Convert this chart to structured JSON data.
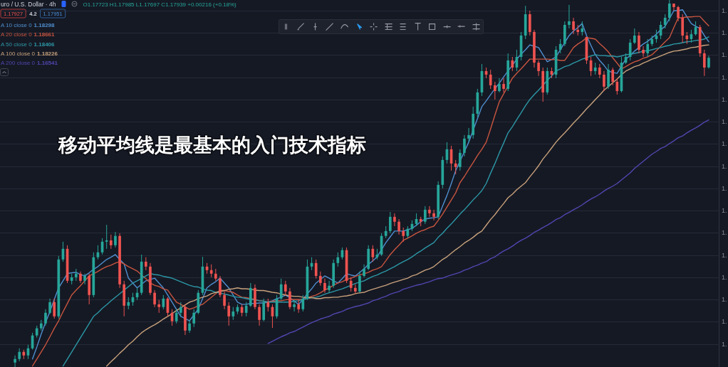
{
  "chart_data": {
    "type": "candlestick",
    "title": "移动平均线是最基本的入门技术指标",
    "legend": "top left",
    "grid": "y",
    "tick_labels": "y",
    "ylim": [
      1.1098,
      1.1924
    ],
    "yticks": [
      {
        "value": 1.19,
        "label": "1."
      },
      {
        "value": 1.185,
        "label": "1."
      },
      {
        "value": 1.18,
        "label": "1."
      },
      {
        "value": 1.175,
        "label": "1."
      },
      {
        "value": 1.17,
        "label": "1."
      },
      {
        "value": 1.165,
        "label": "1."
      },
      {
        "value": 1.16,
        "label": "1."
      },
      {
        "value": 1.155,
        "label": "1."
      },
      {
        "value": 1.15,
        "label": "1."
      },
      {
        "value": 1.145,
        "label": "1."
      },
      {
        "value": 1.14,
        "label": "1."
      },
      {
        "value": 1.135,
        "label": "1."
      },
      {
        "value": 1.13,
        "label": "1."
      },
      {
        "value": 1.125,
        "label": "1."
      },
      {
        "value": 1.12,
        "label": "1."
      },
      {
        "value": 1.115,
        "label": "1."
      }
    ],
    "categories": [
      null,
      null,
      null,
      null,
      null,
      null,
      null,
      null,
      null,
      null,
      null,
      null,
      null,
      null,
      null,
      null,
      null,
      null,
      null,
      null,
      null,
      null,
      null,
      null,
      null,
      null,
      null,
      null,
      null,
      null,
      null,
      null,
      null,
      null,
      null,
      null,
      null,
      null,
      null,
      null,
      null,
      null,
      null,
      null,
      null,
      null,
      null,
      null,
      null,
      null,
      null,
      null,
      null,
      null,
      null,
      null,
      null,
      null,
      null,
      null,
      null,
      null,
      null,
      null,
      null,
      null,
      null,
      null,
      null,
      null,
      null,
      null,
      null,
      null,
      null,
      null,
      null,
      null,
      null,
      null,
      null,
      null,
      null,
      null,
      null,
      null,
      null,
      null,
      null,
      null,
      null,
      null,
      null,
      null,
      null,
      null,
      null,
      null,
      null,
      null,
      null,
      null,
      null,
      null,
      null,
      null,
      null,
      null,
      null,
      null,
      null,
      null,
      null,
      null,
      null,
      null,
      null,
      null,
      null,
      null,
      null,
      null,
      null,
      null,
      null,
      null,
      null,
      null,
      null,
      null,
      null,
      null,
      null,
      null,
      null,
      null,
      null,
      null,
      null,
      null,
      null,
      null,
      null,
      null,
      null,
      null,
      null,
      null,
      null,
      null,
      null,
      null,
      null,
      null,
      null,
      null,
      null,
      null,
      null,
      null
    ],
    "ohlc": [
      [
        1.1108,
        1.1124,
        1.1098,
        1.1116
      ],
      [
        1.1116,
        1.114,
        1.1111,
        1.1132
      ],
      [
        1.1132,
        1.1137,
        1.1116,
        1.1124
      ],
      [
        1.1124,
        1.1148,
        1.1116,
        1.114
      ],
      [
        1.114,
        1.1175,
        1.1137,
        1.1169
      ],
      [
        1.1169,
        1.1191,
        1.1164,
        1.1185
      ],
      [
        1.1185,
        1.1204,
        1.118,
        1.1196
      ],
      [
        1.1196,
        1.1228,
        1.1191,
        1.122
      ],
      [
        1.122,
        1.1252,
        1.1217,
        1.1244
      ],
      [
        1.1244,
        1.1252,
        1.1207,
        1.1212
      ],
      [
        1.1212,
        1.1348,
        1.1207,
        1.134
      ],
      [
        1.134,
        1.138,
        1.1335,
        1.1364
      ],
      [
        1.1364,
        1.1372,
        1.1287,
        1.1292
      ],
      [
        1.1292,
        1.1308,
        1.1284,
        1.13
      ],
      [
        1.13,
        1.1319,
        1.1292,
        1.1308
      ],
      [
        1.1308,
        1.1313,
        1.1287,
        1.1292
      ],
      [
        1.1292,
        1.1308,
        1.1284,
        1.1303
      ],
      [
        1.1303,
        1.1308,
        1.1239,
        1.126
      ],
      [
        1.126,
        1.1356,
        1.1255,
        1.1345
      ],
      [
        1.1345,
        1.1372,
        1.134,
        1.1356
      ],
      [
        1.1356,
        1.1388,
        1.1351,
        1.138
      ],
      [
        1.138,
        1.1418,
        1.1364,
        1.1383
      ],
      [
        1.1383,
        1.1396,
        1.1364,
        1.1372
      ],
      [
        1.1372,
        1.1402,
        1.1367,
        1.1393
      ],
      [
        1.1393,
        1.1399,
        1.1276,
        1.1284
      ],
      [
        1.1284,
        1.1292,
        1.1212,
        1.1236
      ],
      [
        1.1236,
        1.1255,
        1.1228,
        1.1244
      ],
      [
        1.1244,
        1.1265,
        1.1236,
        1.1255
      ],
      [
        1.1255,
        1.1276,
        1.1249,
        1.1265
      ],
      [
        1.1265,
        1.1351,
        1.126,
        1.1335
      ],
      [
        1.1335,
        1.1345,
        1.1316,
        1.1324
      ],
      [
        1.1324,
        1.1332,
        1.126,
        1.1265
      ],
      [
        1.1265,
        1.1271,
        1.1233,
        1.1239
      ],
      [
        1.1239,
        1.1249,
        1.122,
        1.1233
      ],
      [
        1.1233,
        1.126,
        1.1228,
        1.1252
      ],
      [
        1.1252,
        1.1255,
        1.1212,
        1.122
      ],
      [
        1.122,
        1.1228,
        1.1191,
        1.1201
      ],
      [
        1.1201,
        1.1228,
        1.1196,
        1.122
      ],
      [
        1.122,
        1.1244,
        1.1212,
        1.1233
      ],
      [
        1.1233,
        1.1239,
        1.117,
        1.118
      ],
      [
        1.118,
        1.1204,
        1.1175,
        1.1196
      ],
      [
        1.1196,
        1.1228,
        1.1188,
        1.122
      ],
      [
        1.122,
        1.1271,
        1.1217,
        1.1265
      ],
      [
        1.1265,
        1.1346,
        1.126,
        1.1324
      ],
      [
        1.1324,
        1.1332,
        1.1308,
        1.1316
      ],
      [
        1.1316,
        1.1329,
        1.13,
        1.1308
      ],
      [
        1.1308,
        1.1319,
        1.1292,
        1.1297
      ],
      [
        1.1297,
        1.1303,
        1.1255,
        1.126
      ],
      [
        1.126,
        1.1268,
        1.1228,
        1.1236
      ],
      [
        1.1236,
        1.1244,
        1.1191,
        1.1212
      ],
      [
        1.1212,
        1.1233,
        1.1204,
        1.1223
      ],
      [
        1.1223,
        1.1239,
        1.1217,
        1.1233
      ],
      [
        1.1233,
        1.1239,
        1.1212,
        1.122
      ],
      [
        1.122,
        1.1244,
        1.1212,
        1.1236
      ],
      [
        1.1236,
        1.1287,
        1.1233,
        1.1276
      ],
      [
        1.1276,
        1.1284,
        1.1228,
        1.1233
      ],
      [
        1.1233,
        1.1239,
        1.1191,
        1.1204
      ],
      [
        1.1204,
        1.1252,
        1.1201,
        1.1244
      ],
      [
        1.1244,
        1.1252,
        1.1223,
        1.1233
      ],
      [
        1.1233,
        1.1239,
        1.1186,
        1.1212
      ],
      [
        1.1212,
        1.126,
        1.1207,
        1.1252
      ],
      [
        1.1252,
        1.1297,
        1.1249,
        1.1284
      ],
      [
        1.1284,
        1.1292,
        1.126,
        1.1268
      ],
      [
        1.1268,
        1.1276,
        1.1228,
        1.1233
      ],
      [
        1.1233,
        1.1249,
        1.1223,
        1.1239
      ],
      [
        1.1239,
        1.1249,
        1.122,
        1.1228
      ],
      [
        1.1228,
        1.126,
        1.1223,
        1.1252
      ],
      [
        1.1252,
        1.134,
        1.1249,
        1.1324
      ],
      [
        1.1324,
        1.1345,
        1.1316,
        1.1332
      ],
      [
        1.1332,
        1.134,
        1.1297,
        1.1303
      ],
      [
        1.1303,
        1.1313,
        1.1281,
        1.1287
      ],
      [
        1.1287,
        1.1297,
        1.1265,
        1.1271
      ],
      [
        1.1271,
        1.1292,
        1.1265,
        1.1281
      ],
      [
        1.1281,
        1.134,
        1.1276,
        1.1332
      ],
      [
        1.1332,
        1.1356,
        1.1324,
        1.1345
      ],
      [
        1.1345,
        1.1367,
        1.134,
        1.1361
      ],
      [
        1.1361,
        1.1367,
        1.1287,
        1.1292
      ],
      [
        1.1292,
        1.13,
        1.1268,
        1.1276
      ],
      [
        1.1276,
        1.1284,
        1.1263,
        1.1268
      ],
      [
        1.1268,
        1.1313,
        1.1265,
        1.1303
      ],
      [
        1.1303,
        1.1329,
        1.13,
        1.1319
      ],
      [
        1.1319,
        1.1372,
        1.1316,
        1.1364
      ],
      [
        1.1364,
        1.1372,
        1.1335,
        1.1345
      ],
      [
        1.1345,
        1.1364,
        1.134,
        1.1351
      ],
      [
        1.1351,
        1.1399,
        1.1348,
        1.1393
      ],
      [
        1.1393,
        1.1415,
        1.1388,
        1.1404
      ],
      [
        1.1404,
        1.1447,
        1.1399,
        1.1436
      ],
      [
        1.1436,
        1.1444,
        1.1415,
        1.1425
      ],
      [
        1.1425,
        1.1431,
        1.1396,
        1.1404
      ],
      [
        1.1404,
        1.1412,
        1.138,
        1.1393
      ],
      [
        1.1393,
        1.1415,
        1.1388,
        1.1409
      ],
      [
        1.1409,
        1.1428,
        1.1404,
        1.142
      ],
      [
        1.142,
        1.1444,
        1.1415,
        1.1431
      ],
      [
        1.1431,
        1.1436,
        1.1415,
        1.1425
      ],
      [
        1.1425,
        1.146,
        1.142,
        1.1452
      ],
      [
        1.1452,
        1.146,
        1.1436,
        1.1444
      ],
      [
        1.1444,
        1.1452,
        1.1428,
        1.1436
      ],
      [
        1.1436,
        1.1516,
        1.1431,
        1.1508
      ],
      [
        1.1508,
        1.1572,
        1.15,
        1.1564
      ],
      [
        1.1564,
        1.1604,
        1.1556,
        1.1588
      ],
      [
        1.1588,
        1.1596,
        1.154,
        1.1556
      ],
      [
        1.1556,
        1.1564,
        1.1532,
        1.1548
      ],
      [
        1.1548,
        1.1588,
        1.154,
        1.158
      ],
      [
        1.158,
        1.162,
        1.1572,
        1.1612
      ],
      [
        1.1612,
        1.1636,
        1.1604,
        1.162
      ],
      [
        1.162,
        1.1684,
        1.1612,
        1.1668
      ],
      [
        1.1668,
        1.1724,
        1.166,
        1.1716
      ],
      [
        1.1716,
        1.178,
        1.1708,
        1.1764
      ],
      [
        1.1764,
        1.1772,
        1.1748,
        1.1756
      ],
      [
        1.1756,
        1.1767,
        1.1724,
        1.1732
      ],
      [
        1.1732,
        1.174,
        1.17,
        1.1719
      ],
      [
        1.1719,
        1.1748,
        1.1716,
        1.1735
      ],
      [
        1.1735,
        1.1748,
        1.1716,
        1.1724
      ],
      [
        1.1724,
        1.1804,
        1.1719,
        1.1788
      ],
      [
        1.1788,
        1.1796,
        1.1764,
        1.1772
      ],
      [
        1.1772,
        1.1812,
        1.1764,
        1.1796
      ],
      [
        1.1796,
        1.1852,
        1.1788,
        1.1844
      ],
      [
        1.1844,
        1.1911,
        1.1836,
        1.1892
      ],
      [
        1.1892,
        1.19,
        1.1844,
        1.1852
      ],
      [
        1.1852,
        1.1857,
        1.1772,
        1.1783
      ],
      [
        1.1783,
        1.1788,
        1.1753,
        1.1764
      ],
      [
        1.1764,
        1.1772,
        1.1695,
        1.1716
      ],
      [
        1.1716,
        1.1772,
        1.1711,
        1.1764
      ],
      [
        1.1764,
        1.1772,
        1.1748,
        1.1756
      ],
      [
        1.1756,
        1.182,
        1.1748,
        1.1812
      ],
      [
        1.1812,
        1.1836,
        1.1804,
        1.1825
      ],
      [
        1.1825,
        1.1876,
        1.182,
        1.1868
      ],
      [
        1.1868,
        1.1913,
        1.186,
        1.1876
      ],
      [
        1.1876,
        1.1884,
        1.1847,
        1.1857
      ],
      [
        1.1857,
        1.1868,
        1.1844,
        1.1852
      ],
      [
        1.1852,
        1.1876,
        1.1844,
        1.186
      ],
      [
        1.1841,
        1.1841,
        1.178,
        1.1788
      ],
      [
        1.1788,
        1.1796,
        1.1753,
        1.1764
      ],
      [
        1.1764,
        1.1783,
        1.1756,
        1.1772
      ],
      [
        1.1772,
        1.178,
        1.1748,
        1.1756
      ],
      [
        1.1756,
        1.1764,
        1.1719,
        1.1729
      ],
      [
        1.1729,
        1.178,
        1.1724,
        1.1767
      ],
      [
        1.1767,
        1.1772,
        1.1732,
        1.174
      ],
      [
        1.174,
        1.1748,
        1.1711,
        1.1719
      ],
      [
        1.1719,
        1.1796,
        1.1716,
        1.1783
      ],
      [
        1.1783,
        1.1804,
        1.178,
        1.1796
      ],
      [
        1.1796,
        1.1836,
        1.1788,
        1.1828
      ],
      [
        1.1828,
        1.186,
        1.1825,
        1.1844
      ],
      [
        1.1844,
        1.1852,
        1.1804,
        1.1812
      ],
      [
        1.1812,
        1.182,
        1.1796,
        1.1804
      ],
      [
        1.1804,
        1.1836,
        1.1796,
        1.1825
      ],
      [
        1.1825,
        1.1844,
        1.182,
        1.1836
      ],
      [
        1.1836,
        1.1857,
        1.1828,
        1.1844
      ],
      [
        1.1844,
        1.1876,
        1.1836,
        1.1868
      ],
      [
        1.1868,
        1.1892,
        1.186,
        1.1884
      ],
      [
        1.1884,
        1.1924,
        1.1876,
        1.1916
      ],
      [
        1.1916,
        1.1916,
        1.19,
        1.1908
      ],
      [
        1.1908,
        1.1911,
        1.1876,
        1.1884
      ],
      [
        1.1884,
        1.1892,
        1.1828,
        1.1844
      ],
      [
        1.1844,
        1.1852,
        1.1825,
        1.1836
      ],
      [
        1.1836,
        1.1857,
        1.1828,
        1.1847
      ],
      [
        1.1847,
        1.1876,
        1.1844,
        1.1863
      ],
      [
        1.1863,
        1.1868,
        1.1796,
        1.1804
      ],
      [
        1.1804,
        1.1812,
        1.1753,
        1.1772
      ],
      [
        1.17723,
        1.17985,
        1.17697,
        1.17939
      ]
    ],
    "colors": [
      "#26a69a",
      "#26a69a",
      "#ef5350",
      "#26a69a",
      "#26a69a",
      "#26a69a",
      "#26a69a",
      "#26a69a",
      "#26a69a",
      "#ef5350",
      "#26a69a",
      "#26a69a",
      "#ef5350",
      "#26a69a",
      "#26a69a",
      "#ef5350",
      "#26a69a",
      "#ef5350",
      "#26a69a",
      "#26a69a",
      "#26a69a",
      "#26a69a",
      "#ef5350",
      "#26a69a",
      "#ef5350",
      "#ef5350",
      "#26a69a",
      "#26a69a",
      "#26a69a",
      "#26a69a",
      "#ef5350",
      "#ef5350",
      "#ef5350",
      "#ef5350",
      "#26a69a",
      "#ef5350",
      "#ef5350",
      "#26a69a",
      "#26a69a",
      "#ef5350",
      "#26a69a",
      "#26a69a",
      "#26a69a",
      "#26a69a",
      "#ef5350",
      "#ef5350",
      "#ef5350",
      "#ef5350",
      "#ef5350",
      "#ef5350",
      "#26a69a",
      "#26a69a",
      "#ef5350",
      "#26a69a",
      "#26a69a",
      "#ef5350",
      "#ef5350",
      "#26a69a",
      "#ef5350",
      "#ef5350",
      "#26a69a",
      "#26a69a",
      "#ef5350",
      "#ef5350",
      "#26a69a",
      "#ef5350",
      "#26a69a",
      "#26a69a",
      "#26a69a",
      "#ef5350",
      "#ef5350",
      "#ef5350",
      "#26a69a",
      "#26a69a",
      "#26a69a",
      "#26a69a",
      "#ef5350",
      "#ef5350",
      "#ef5350",
      "#26a69a",
      "#26a69a",
      "#26a69a",
      "#ef5350",
      "#26a69a",
      "#26a69a",
      "#26a69a",
      "#26a69a",
      "#ef5350",
      "#ef5350",
      "#ef5350",
      "#26a69a",
      "#26a69a",
      "#26a69a",
      "#ef5350",
      "#26a69a",
      "#ef5350",
      "#ef5350",
      "#26a69a",
      "#26a69a",
      "#26a69a",
      "#ef5350",
      "#ef5350",
      "#26a69a",
      "#26a69a",
      "#26a69a",
      "#26a69a",
      "#26a69a",
      "#26a69a",
      "#ef5350",
      "#ef5350",
      "#ef5350",
      "#26a69a",
      "#ef5350",
      "#26a69a",
      "#ef5350",
      "#26a69a",
      "#26a69a",
      "#26a69a",
      "#ef5350",
      "#ef5350",
      "#ef5350",
      "#ef5350",
      "#26a69a",
      "#ef5350",
      "#26a69a",
      "#26a69a",
      "#26a69a",
      "#26a69a",
      "#ef5350",
      "#ef5350",
      "#26a69a",
      "#ef5350",
      "#ef5350",
      "#26a69a",
      "#ef5350",
      "#ef5350",
      "#26a69a",
      "#ef5350",
      "#ef5350",
      "#26a69a",
      "#26a69a",
      "#26a69a",
      "#26a69a",
      "#ef5350",
      "#ef5350",
      "#26a69a",
      "#26a69a",
      "#26a69a",
      "#26a69a",
      "#26a69a",
      "#26a69a",
      "#ef5350",
      "#ef5350",
      "#ef5350",
      "#ef5350",
      "#26a69a",
      "#26a69a",
      "#ef5350",
      "#ef5350",
      "#26a69a"
    ],
    "series": [
      {
        "type": "line",
        "name": "A 10 close 0",
        "color": "#4f8fcf",
        "values": [
          null,
          null,
          null,
          null,
          1.1116,
          1.1143,
          1.1172,
          1.1198,
          1.1223,
          1.125,
          1.1276,
          1.1292,
          1.1308,
          1.131,
          1.1311,
          1.1306,
          1.1303,
          1.131,
          1.1318,
          1.1324,
          1.1332,
          1.134,
          1.1345,
          1.1351,
          1.134,
          1.133,
          1.1298,
          1.1287,
          1.1276,
          1.1284,
          1.1292,
          1.1295,
          1.1298,
          1.1287,
          1.1276,
          1.126,
          1.1244,
          1.1228,
          1.1212,
          1.1207,
          1.1202,
          1.1215,
          1.1228,
          1.1252,
          1.1276,
          1.1284,
          1.129,
          1.1298,
          1.1287,
          1.1276,
          1.126,
          1.1244,
          1.1239,
          1.1239,
          1.1241,
          1.1241,
          1.1242,
          1.1242,
          1.1244,
          1.1247,
          1.1252,
          1.1255,
          1.126,
          1.1254,
          1.1246,
          1.1239,
          1.125,
          1.1263,
          1.1274,
          1.1287,
          1.1295,
          1.1303,
          1.1298,
          1.1292,
          1.1287,
          1.1297,
          1.1308,
          1.1305,
          1.1303,
          1.1311,
          1.1319,
          1.1329,
          1.1337,
          1.1346,
          1.1362,
          1.1378,
          1.1391,
          1.1404,
          1.1404,
          1.1404,
          1.1407,
          1.141,
          1.1417,
          1.1425,
          1.1431,
          1.1433,
          1.1434,
          1.1436,
          1.146,
          1.1484,
          1.1511,
          1.154,
          1.1561,
          1.1583,
          1.1604,
          1.1631,
          1.1657,
          1.1684,
          1.1697,
          1.1711,
          1.1724,
          1.1737,
          1.1751,
          1.1764,
          1.1777,
          1.1791,
          1.1802,
          1.1812,
          1.1823,
          1.182,
          1.1817,
          1.1801,
          1.1785,
          1.179,
          1.1796,
          1.1812,
          1.1828,
          1.1844,
          1.1854,
          1.1862,
          1.1871,
          1.1844,
          1.1822,
          1.1801,
          1.1788,
          1.1777,
          1.1764,
          1.1761,
          1.1759,
          1.1775,
          1.1791,
          1.1799,
          1.1809,
          1.1817,
          1.1825,
          1.1831,
          1.1839,
          1.1847,
          1.1857,
          1.1865,
          1.1882,
          1.19,
          1.19,
          1.1902,
          1.1886,
          1.1871,
          1.1865,
          1.186,
          1.1844,
          1.183
        ]
      },
      {
        "type": "line",
        "name": "A 20 close 0",
        "color": "#c8553f",
        "values": [
          null,
          null,
          null,
          null,
          1.11,
          1.1116,
          1.1132,
          1.1148,
          1.1166,
          1.1185,
          1.1202,
          1.1222,
          1.1241,
          1.126,
          1.1271,
          1.1281,
          1.1292,
          1.1303,
          1.1308,
          1.1313,
          1.1319,
          1.1324,
          1.1327,
          1.1332,
          1.1335,
          1.133,
          1.1324,
          1.1319,
          1.1314,
          1.1305,
          1.1297,
          1.1287,
          1.1282,
          1.1279,
          1.1274,
          1.1271,
          1.1257,
          1.1244,
          1.1239,
          1.1233,
          1.1228,
          1.1231,
          1.1236,
          1.1239,
          1.1247,
          1.1255,
          1.1263,
          1.1271,
          1.127,
          1.1268,
          1.1266,
          1.126,
          1.1255,
          1.1254,
          1.1252,
          1.125,
          1.1247,
          1.1246,
          1.1244,
          1.1246,
          1.1247,
          1.1247,
          1.1249,
          1.125,
          1.125,
          1.125,
          1.125,
          1.1254,
          1.1257,
          1.126,
          1.1265,
          1.1271,
          1.1276,
          1.1282,
          1.1287,
          1.129,
          1.1295,
          1.1298,
          1.1302,
          1.1305,
          1.1308,
          1.1311,
          1.1316,
          1.1319,
          1.1324,
          1.1337,
          1.1351,
          1.1362,
          1.1372,
          1.1383,
          1.1388,
          1.1393,
          1.1399,
          1.1404,
          1.1407,
          1.1412,
          1.1415,
          1.1428,
          1.1442,
          1.1458,
          1.1474,
          1.149,
          1.1513,
          1.1527,
          1.1543,
          1.1558,
          1.1574,
          1.1588,
          1.1604,
          1.1634,
          1.1665,
          1.1695,
          1.1713,
          1.173,
          1.1748,
          1.1759,
          1.1769,
          1.178,
          1.1791,
          1.1791,
          1.1791,
          1.1791,
          1.1791,
          1.179,
          1.179,
          1.1788,
          1.1788,
          1.1802,
          1.1817,
          1.1825,
          1.1831,
          1.1839,
          1.1838,
          1.1836,
          1.1826,
          1.1817,
          1.1807,
          1.1794,
          1.1782,
          1.1769,
          1.1774,
          1.178,
          1.1785,
          1.1788,
          1.1793,
          1.1796,
          1.1801,
          1.181,
          1.182,
          1.183,
          1.1839,
          1.1862,
          1.1884,
          1.1884,
          1.1886,
          1.1886,
          1.1887,
          1.1887,
          1.1876,
          1.1866
        ]
      },
      {
        "type": "line",
        "name": "A 50 close 0",
        "color": "#2c98a6",
        "values": [
          null,
          null,
          null,
          null,
          null,
          null,
          null,
          null,
          null,
          null,
          null,
          1.11,
          1.1116,
          1.1132,
          1.1148,
          1.1164,
          1.118,
          1.1196,
          1.1212,
          1.122,
          1.123,
          1.1238,
          1.1247,
          1.1255,
          1.1263,
          1.1271,
          1.1279,
          1.1287,
          1.1292,
          1.1297,
          1.1303,
          1.1308,
          1.1306,
          1.1305,
          1.1302,
          1.13,
          1.1298,
          1.1294,
          1.129,
          1.1286,
          1.1282,
          1.1279,
          1.1278,
          1.1274,
          1.1271,
          1.127,
          1.1266,
          1.1265,
          1.1262,
          1.126,
          1.1257,
          1.1255,
          1.1254,
          1.1252,
          1.125,
          1.1249,
          1.1247,
          1.1246,
          1.1244,
          1.1244,
          1.1244,
          1.1244,
          1.1244,
          1.1244,
          1.1246,
          1.1247,
          1.125,
          1.1252,
          1.1254,
          1.1255,
          1.1258,
          1.1262,
          1.1265,
          1.1268,
          1.1271,
          1.1274,
          1.1278,
          1.1282,
          1.1286,
          1.1289,
          1.1292,
          1.1297,
          1.1302,
          1.1305,
          1.131,
          1.1314,
          1.1319,
          1.1324,
          1.133,
          1.1335,
          1.134,
          1.1346,
          1.1353,
          1.1359,
          1.1366,
          1.1372,
          1.1378,
          1.139,
          1.1399,
          1.141,
          1.142,
          1.1431,
          1.1442,
          1.1452,
          1.1463,
          1.1474,
          1.1484,
          1.1495,
          1.1511,
          1.1534,
          1.1556,
          1.158,
          1.1602,
          1.1625,
          1.1639,
          1.1655,
          1.167,
          1.1686,
          1.17,
          1.1711,
          1.1721,
          1.1732,
          1.1743,
          1.1753,
          1.1764,
          1.1769,
          1.1774,
          1.1777,
          1.1782,
          1.1786,
          1.1791,
          1.1794,
          1.1798,
          1.1801,
          1.1799,
          1.1799,
          1.1798,
          1.1798,
          1.1796,
          1.1798,
          1.1801,
          1.1802,
          1.1804,
          1.1806,
          1.1809,
          1.181,
          1.1812,
          1.1815,
          1.1817,
          1.182,
          1.1822,
          1.1825,
          1.1826,
          1.1828,
          1.183,
          1.1831,
          1.1833,
          1.1834,
          1.1836,
          1.1841
        ]
      },
      {
        "type": "line",
        "name": "A 100 close 0",
        "color": "#c9a27c",
        "values": [
          null,
          null,
          null,
          null,
          null,
          null,
          null,
          null,
          null,
          null,
          null,
          null,
          null,
          null,
          null,
          null,
          null,
          null,
          null,
          null,
          null,
          1.11,
          1.111,
          1.1119,
          1.1129,
          1.1138,
          1.1148,
          1.1156,
          1.1166,
          1.1175,
          1.1182,
          1.1188,
          1.1193,
          1.1199,
          1.1206,
          1.1212,
          1.1218,
          1.1225,
          1.1231,
          1.1238,
          1.1244,
          1.1247,
          1.1252,
          1.1255,
          1.1258,
          1.1263,
          1.1266,
          1.1268,
          1.127,
          1.1273,
          1.1274,
          1.1276,
          1.1274,
          1.1274,
          1.1273,
          1.1271,
          1.127,
          1.127,
          1.1268,
          1.1266,
          1.1265,
          1.1262,
          1.126,
          1.1258,
          1.1257,
          1.1257,
          1.1255,
          1.1254,
          1.1254,
          1.1252,
          1.1252,
          1.1254,
          1.1254,
          1.1255,
          1.1255,
          1.1257,
          1.1258,
          1.126,
          1.1263,
          1.1265,
          1.1266,
          1.127,
          1.1273,
          1.1276,
          1.1279,
          1.1282,
          1.1286,
          1.1289,
          1.1292,
          1.1295,
          1.1298,
          1.1303,
          1.1306,
          1.1311,
          1.1316,
          1.1319,
          1.1324,
          1.1332,
          1.134,
          1.1346,
          1.1354,
          1.1362,
          1.1369,
          1.1377,
          1.1383,
          1.139,
          1.1398,
          1.1404,
          1.1417,
          1.143,
          1.1441,
          1.1454,
          1.1466,
          1.1479,
          1.1487,
          1.1497,
          1.1505,
          1.1513,
          1.1526,
          1.1538,
          1.1551,
          1.1566,
          1.1578,
          1.1591,
          1.1604,
          1.1615,
          1.1625,
          1.1636,
          1.1647,
          1.1657,
          1.1668,
          1.1679,
          1.1689,
          1.17,
          1.171,
          1.1721,
          1.1729,
          1.1738,
          1.1746,
          1.1756,
          1.1764,
          1.1769,
          1.1774,
          1.1777,
          1.1782,
          1.1786,
          1.1791,
          1.1794,
          1.1798,
          1.1802,
          1.1806,
          1.1809,
          1.181,
          1.1812,
          1.1814,
          1.1817,
          1.1818,
          1.182,
          1.1822,
          1.1823
        ]
      },
      {
        "type": "line",
        "name": "A 200 close 0",
        "color": "#5146b0",
        "values": [
          null,
          null,
          null,
          null,
          null,
          null,
          null,
          null,
          null,
          null,
          null,
          null,
          null,
          null,
          null,
          null,
          null,
          null,
          null,
          null,
          null,
          null,
          null,
          null,
          null,
          null,
          null,
          null,
          null,
          null,
          null,
          null,
          null,
          null,
          null,
          null,
          null,
          null,
          null,
          null,
          null,
          null,
          null,
          null,
          null,
          null,
          null,
          null,
          null,
          null,
          null,
          null,
          null,
          null,
          null,
          null,
          null,
          null,
          1.1151,
          1.1156,
          1.1161,
          1.1166,
          1.117,
          1.1175,
          1.1178,
          1.1183,
          1.1188,
          1.1193,
          1.1198,
          1.1202,
          1.1206,
          1.1209,
          1.1212,
          1.1217,
          1.122,
          1.1223,
          1.1228,
          1.1231,
          1.1234,
          1.1236,
          1.1239,
          1.1242,
          1.1247,
          1.125,
          1.1254,
          1.1257,
          1.1262,
          1.1265,
          1.1268,
          1.1273,
          1.1276,
          1.1279,
          1.1282,
          1.1284,
          1.1287,
          1.129,
          1.1294,
          1.1297,
          1.1298,
          1.1302,
          1.1305,
          1.1308,
          1.1311,
          1.1316,
          1.1319,
          1.1324,
          1.1327,
          1.1332,
          1.1335,
          1.1342,
          1.1346,
          1.1353,
          1.1359,
          1.1364,
          1.137,
          1.1377,
          1.1383,
          1.1388,
          1.1394,
          1.1401,
          1.1406,
          1.1412,
          1.1417,
          1.1423,
          1.143,
          1.1434,
          1.1441,
          1.1446,
          1.1452,
          1.1457,
          1.1463,
          1.147,
          1.1476,
          1.1481,
          1.1487,
          1.1494,
          1.15,
          1.1505,
          1.1511,
          1.1519,
          1.1527,
          1.1535,
          1.1545,
          1.1553,
          1.1561,
          1.1569,
          1.1577,
          1.1583,
          1.159,
          1.1594,
          1.1601,
          1.1607,
          1.1614,
          1.1618,
          1.1625,
          1.1631,
          1.1636,
          1.1642,
          1.1649,
          1.1654
        ]
      }
    ],
    "annotations": [
      "uro / U.S. Dollar · 4h",
      "O1.17723 H1.17985 L1.17697 C1.17939 +0.00216 (+0.18%)",
      "1.17927",
      "4.2",
      "1.17951",
      "1.18298",
      "1.18661",
      "1.18406",
      "1.18226",
      "1.16541"
    ]
  }
}
